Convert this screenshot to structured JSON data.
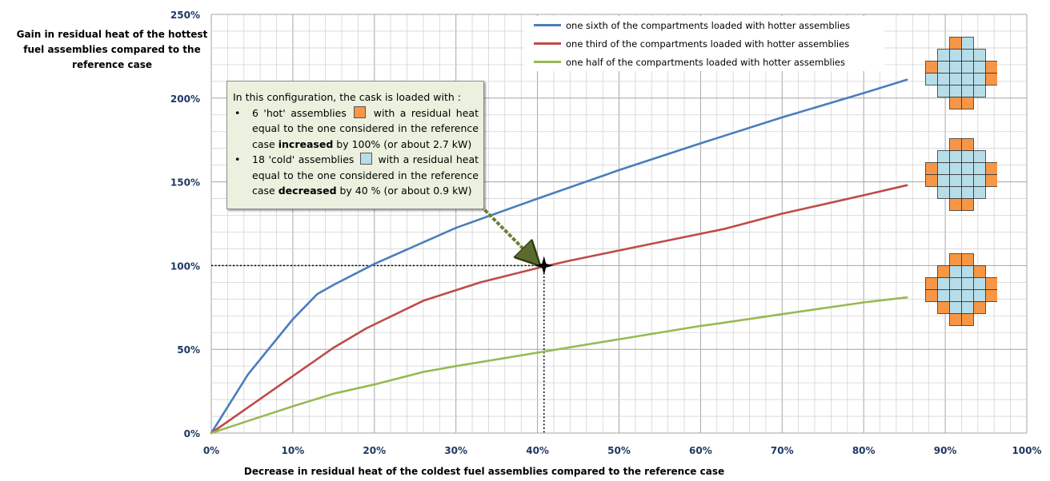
{
  "chart_data": {
    "type": "line",
    "xlabel": "Decrease in residual heat of the coldest fuel assemblies compared to the reference case",
    "ylabel": "Gain in residual heat of the hottest fuel assemblies compared to the reference case",
    "xlim": [
      0,
      100
    ],
    "ylim": [
      0,
      250
    ],
    "x_ticks": [
      "0%",
      "10%",
      "20%",
      "30%",
      "40%",
      "50%",
      "60%",
      "70%",
      "80%",
      "90%",
      "100%"
    ],
    "y_ticks": [
      "0%",
      "50%",
      "100%",
      "150%",
      "200%",
      "250%"
    ],
    "grid": true,
    "legend_position": "top-right",
    "series": [
      {
        "name": "one sixth of the compartments loaded with hotter assemblies",
        "color": "#4a7ebb",
        "points": [
          [
            0,
            0
          ],
          [
            4.5,
            35
          ],
          [
            10,
            68
          ],
          [
            13,
            83
          ],
          [
            15,
            88.5
          ],
          [
            20,
            101
          ],
          [
            30,
            122.5
          ],
          [
            40,
            140
          ],
          [
            50,
            157
          ],
          [
            60,
            173
          ],
          [
            70,
            188.5
          ],
          [
            80,
            203
          ],
          [
            85.3,
            211
          ]
        ]
      },
      {
        "name": "one third of the compartments loaded with hotter assemblies",
        "color": "#be4b48",
        "points": [
          [
            0,
            0
          ],
          [
            5,
            17
          ],
          [
            10,
            34
          ],
          [
            15,
            51
          ],
          [
            19,
            62.5
          ],
          [
            26,
            79
          ],
          [
            33,
            90
          ],
          [
            40,
            98.5
          ],
          [
            44,
            103
          ],
          [
            50,
            109
          ],
          [
            63,
            122
          ],
          [
            70,
            131
          ],
          [
            80,
            142
          ],
          [
            85.3,
            148
          ]
        ]
      },
      {
        "name": "one half of the compartments loaded with hotter assemblies",
        "color": "#98b954",
        "points": [
          [
            0,
            0
          ],
          [
            5,
            8
          ],
          [
            10,
            16
          ],
          [
            15,
            23.5
          ],
          [
            20,
            29
          ],
          [
            26,
            36.5
          ],
          [
            30,
            40
          ],
          [
            40,
            48
          ],
          [
            50,
            56
          ],
          [
            60,
            64
          ],
          [
            63,
            66
          ],
          [
            70,
            71
          ],
          [
            80,
            78
          ],
          [
            85.3,
            81
          ]
        ]
      }
    ],
    "reference_point": {
      "x": 40.8,
      "y": 100
    },
    "annotation": {
      "intro": "In this configuration, the cask is loaded with :",
      "bullet": "•",
      "hot": {
        "count": "6 'hot' assemblies",
        "text_a": "with a residual heat equal to the one considered in the reference case",
        "emph": "increased",
        "text_b": "by 100% (or about 2.7 kW)"
      },
      "cold": {
        "count": "18 'cold' assemblies",
        "text_a": "with a residual heat equal to the one considered in the reference case",
        "emph": "decreased",
        "text_b": "by 40 % (or about 0.9 kW)"
      }
    },
    "colors": {
      "hot": "#f79646",
      "cold": "#b7dde8",
      "grid": "#c0c0c0",
      "axis_text": "#1f3864"
    },
    "loading_patterns": [
      {
        "hot_cells": [
          [
            0,
            2
          ],
          [
            2,
            0
          ],
          [
            2,
            5
          ],
          [
            5,
            3
          ],
          [
            3,
            5
          ],
          [
            5,
            2
          ]
        ]
      },
      {
        "hot_cells": [
          [
            0,
            2
          ],
          [
            0,
            3
          ],
          [
            2,
            0
          ],
          [
            3,
            0
          ],
          [
            2,
            5
          ],
          [
            3,
            5
          ],
          [
            5,
            2
          ],
          [
            5,
            3
          ]
        ]
      },
      {
        "hot_cells": [
          [
            0,
            2
          ],
          [
            0,
            3
          ],
          [
            1,
            1
          ],
          [
            1,
            4
          ],
          [
            2,
            0
          ],
          [
            3,
            0
          ],
          [
            2,
            5
          ],
          [
            3,
            5
          ],
          [
            4,
            1
          ],
          [
            4,
            4
          ],
          [
            5,
            2
          ],
          [
            5,
            3
          ]
        ]
      }
    ]
  }
}
